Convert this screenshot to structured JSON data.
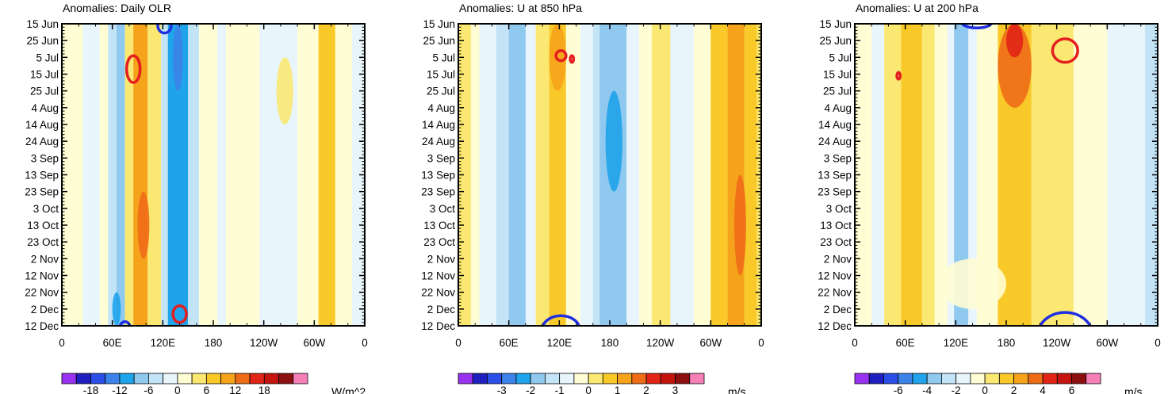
{
  "chart_data": [
    {
      "type": "heatmap",
      "title": "Anomalies: Daily OLR",
      "units_label": "W/m^2",
      "x_tick_labels": [
        "0",
        "60E",
        "120E",
        "180",
        "120W",
        "60W",
        "0"
      ],
      "x_tick_lon": [
        0,
        60,
        120,
        180,
        240,
        300,
        360
      ],
      "y_tick_labels": [
        "15 Jun",
        "25 Jun",
        "5 Jul",
        "15 Jul",
        "25 Jul",
        "4 Aug",
        "14 Aug",
        "24 Aug",
        "3 Sep",
        "13 Sep",
        "23 Sep",
        "3 Oct",
        "13 Oct",
        "23 Oct",
        "2 Nov",
        "12 Nov",
        "22 Nov",
        "2 Dec",
        "12 Dec"
      ],
      "colorbar_labels": [
        "-18",
        "-12",
        "-6",
        "0",
        "6",
        "12",
        "18"
      ],
      "colorbar_label_bins": [
        2,
        4,
        6,
        8,
        10,
        12,
        14
      ],
      "bands": [
        {
          "lon": [
            0,
            25
          ],
          "level": 0
        },
        {
          "lon": [
            25,
            45
          ],
          "level": -1
        },
        {
          "lon": [
            45,
            55
          ],
          "level": 0
        },
        {
          "lon": [
            55,
            65
          ],
          "level": -2
        },
        {
          "lon": [
            65,
            75
          ],
          "level": -3
        },
        {
          "lon": [
            75,
            85
          ],
          "level": 1
        },
        {
          "lon": [
            85,
            102
          ],
          "level": 3
        },
        {
          "lon": [
            102,
            118
          ],
          "level": 1
        },
        {
          "lon": [
            118,
            126
          ],
          "level": -2
        },
        {
          "lon": [
            126,
            150
          ],
          "level": -4
        },
        {
          "lon": [
            150,
            163
          ],
          "level": -2
        },
        {
          "lon": [
            163,
            185
          ],
          "level": 0
        },
        {
          "lon": [
            185,
            195
          ],
          "level": -1
        },
        {
          "lon": [
            195,
            235
          ],
          "level": 0
        },
        {
          "lon": [
            235,
            280
          ],
          "level": -1
        },
        {
          "lon": [
            280,
            305
          ],
          "level": 0
        },
        {
          "lon": [
            305,
            325
          ],
          "level": 2
        },
        {
          "lon": [
            325,
            345
          ],
          "level": 0
        },
        {
          "lon": [
            345,
            360
          ],
          "level": -1
        }
      ],
      "blobs": [
        {
          "lon": [
            90,
            104
          ],
          "date": [
            10,
            14
          ],
          "level": 4
        },
        {
          "lon": [
            132,
            144
          ],
          "date": [
            0,
            4
          ],
          "level": -5
        },
        {
          "lon": [
            255,
            275
          ],
          "date": [
            2,
            6
          ],
          "level": 1
        },
        {
          "lon": [
            60,
            70
          ],
          "date": [
            16,
            18
          ],
          "level": -4
        }
      ],
      "contours": [
        {
          "color": "#e41e1e",
          "lon": 85,
          "date": 2.7,
          "rlon": 8,
          "rdate": 0.8
        },
        {
          "color": "#e41e1e",
          "lon": 140,
          "date": 17.3,
          "rlon": 8,
          "rdate": 0.5
        },
        {
          "color": "#1f2ee0",
          "lon": 122,
          "date": 0.1,
          "rlon": 8,
          "rdate": 0.45
        },
        {
          "color": "#1f2ee0",
          "lon": 75,
          "date": 18.1,
          "rlon": 6,
          "rdate": 0.35
        }
      ]
    },
    {
      "type": "heatmap",
      "title": "Anomalies: U at 850 hPa",
      "units_label": "m/s",
      "x_tick_labels": [
        "0",
        "60E",
        "120E",
        "180",
        "120W",
        "60W",
        "0"
      ],
      "x_tick_lon": [
        0,
        60,
        120,
        180,
        240,
        300,
        360
      ],
      "y_tick_labels": [
        "15 Jun",
        "25 Jun",
        "5 Jul",
        "15 Jul",
        "25 Jul",
        "4 Aug",
        "14 Aug",
        "24 Aug",
        "3 Sep",
        "13 Sep",
        "23 Sep",
        "3 Oct",
        "13 Oct",
        "23 Oct",
        "2 Nov",
        "12 Nov",
        "22 Nov",
        "2 Dec",
        "12 Dec"
      ],
      "colorbar_labels": [
        "-3",
        "-2",
        "-1",
        "0",
        "1",
        "2",
        "3"
      ],
      "colorbar_label_bins": [
        3,
        5,
        7,
        9,
        11,
        13,
        15
      ],
      "bands": [
        {
          "lon": [
            0,
            15
          ],
          "level": 1
        },
        {
          "lon": [
            15,
            25
          ],
          "level": 0
        },
        {
          "lon": [
            25,
            45
          ],
          "level": -1
        },
        {
          "lon": [
            45,
            60
          ],
          "level": -2
        },
        {
          "lon": [
            60,
            80
          ],
          "level": -3
        },
        {
          "lon": [
            80,
            92
          ],
          "level": -1
        },
        {
          "lon": [
            92,
            108
          ],
          "level": 1
        },
        {
          "lon": [
            108,
            128
          ],
          "level": 2
        },
        {
          "lon": [
            128,
            145
          ],
          "level": 0
        },
        {
          "lon": [
            145,
            160
          ],
          "level": -1
        },
        {
          "lon": [
            160,
            168
          ],
          "level": -2
        },
        {
          "lon": [
            168,
            200
          ],
          "level": -3
        },
        {
          "lon": [
            200,
            215
          ],
          "level": -1
        },
        {
          "lon": [
            215,
            230
          ],
          "level": 0
        },
        {
          "lon": [
            230,
            252
          ],
          "level": 1
        },
        {
          "lon": [
            252,
            280
          ],
          "level": -1
        },
        {
          "lon": [
            280,
            300
          ],
          "level": 0
        },
        {
          "lon": [
            300,
            320
          ],
          "level": 2
        },
        {
          "lon": [
            320,
            340
          ],
          "level": 3
        },
        {
          "lon": [
            340,
            355
          ],
          "level": 2
        },
        {
          "lon": [
            355,
            360
          ],
          "level": 1
        }
      ],
      "blobs": [
        {
          "lon": [
            108,
            128
          ],
          "date": [
            0,
            4
          ],
          "level": 3
        },
        {
          "lon": [
            328,
            342
          ],
          "date": [
            9,
            15
          ],
          "level": 4
        },
        {
          "lon": [
            175,
            195
          ],
          "date": [
            4,
            10
          ],
          "level": -4
        }
      ],
      "contours": [
        {
          "color": "#e41e1e",
          "lon": 122,
          "date": 1.9,
          "rlon": 6,
          "rdate": 0.3
        },
        {
          "color": "#e41e1e",
          "lon": 135,
          "date": 2.1,
          "rlon": 2,
          "rdate": 0.2
        },
        {
          "color": "#1f2ee0",
          "lon": 122,
          "date": 18.2,
          "rlon": 22,
          "rdate": 0.8
        }
      ]
    },
    {
      "type": "heatmap",
      "title": "Anomalies: U at 200 hPa",
      "units_label": "m/s",
      "x_tick_labels": [
        "0",
        "60E",
        "120E",
        "180",
        "120W",
        "60W",
        "0"
      ],
      "x_tick_lon": [
        0,
        60,
        120,
        180,
        240,
        300,
        360
      ],
      "y_tick_labels": [
        "15 Jun",
        "25 Jun",
        "5 Jul",
        "15 Jul",
        "25 Jul",
        "4 Aug",
        "14 Aug",
        "24 Aug",
        "3 Sep",
        "13 Sep",
        "23 Sep",
        "3 Oct",
        "13 Oct",
        "23 Oct",
        "2 Nov",
        "12 Nov",
        "22 Nov",
        "2 Dec",
        "12 Dec"
      ],
      "colorbar_labels": [
        "-6",
        "-4",
        "-2",
        "0",
        "2",
        "4",
        "6"
      ],
      "colorbar_label_bins": [
        3,
        5,
        7,
        9,
        11,
        13,
        15
      ],
      "bands": [
        {
          "lon": [
            0,
            20
          ],
          "level": 0
        },
        {
          "lon": [
            20,
            35
          ],
          "level": -1
        },
        {
          "lon": [
            35,
            55
          ],
          "level": 1
        },
        {
          "lon": [
            55,
            80
          ],
          "level": 2
        },
        {
          "lon": [
            80,
            95
          ],
          "level": 1
        },
        {
          "lon": [
            95,
            110
          ],
          "level": 0
        },
        {
          "lon": [
            110,
            118
          ],
          "level": -1
        },
        {
          "lon": [
            118,
            135
          ],
          "level": -3
        },
        {
          "lon": [
            135,
            145
          ],
          "level": -1
        },
        {
          "lon": [
            145,
            170
          ],
          "level": 0
        },
        {
          "lon": [
            170,
            210
          ],
          "level": 2
        },
        {
          "lon": [
            210,
            260
          ],
          "level": 1
        },
        {
          "lon": [
            260,
            300
          ],
          "level": 0
        },
        {
          "lon": [
            300,
            345
          ],
          "level": -1
        },
        {
          "lon": [
            345,
            360
          ],
          "level": -2
        }
      ],
      "blobs": [
        {
          "lon": [
            170,
            210
          ],
          "date": [
            0,
            5
          ],
          "level": 4
        },
        {
          "lon": [
            180,
            200
          ],
          "date": [
            0,
            2
          ],
          "level": 5
        },
        {
          "lon": [
            100,
            180
          ],
          "date": [
            14,
            17
          ],
          "level": 0
        }
      ],
      "contours": [
        {
          "color": "#e41e1e",
          "lon": 250,
          "date": 1.6,
          "rlon": 15,
          "rdate": 0.7
        },
        {
          "color": "#e41e1e",
          "lon": 52,
          "date": 3.1,
          "rlon": 2,
          "rdate": 0.2
        },
        {
          "color": "#1f2ee0",
          "lon": 145,
          "date": -0.1,
          "rlon": 18,
          "rdate": 0.35
        },
        {
          "color": "#1f2ee0",
          "lon": 250,
          "date": 18.5,
          "rlon": 32,
          "rdate": 1.3
        }
      ]
    }
  ],
  "palette": [
    "#9632f0",
    "#1f1fbf",
    "#2b4ee6",
    "#3b83e8",
    "#1fa3ea",
    "#8fc9f0",
    "#c3e3f7",
    "#e9f5fc",
    "#fffdd4",
    "#fbe873",
    "#f8c928",
    "#f5a31a",
    "#ef6c17",
    "#e02516",
    "#c3140e",
    "#8c1010",
    "#f77fb8"
  ],
  "neutral_index": 8
}
